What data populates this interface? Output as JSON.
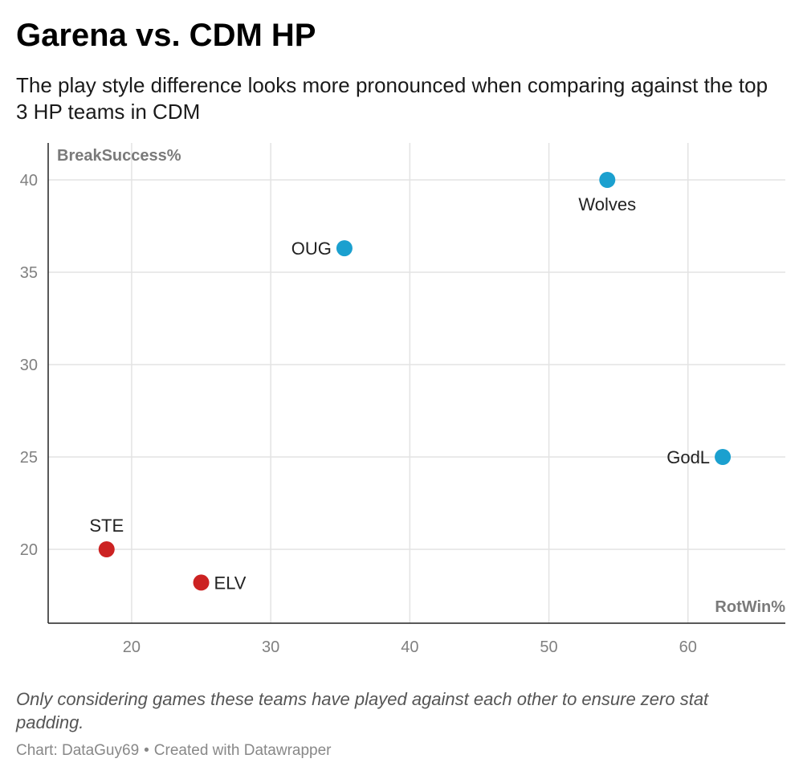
{
  "title": "Garena vs. CDM HP",
  "subtitle": "The play style difference looks more pronounced when comparing against the top 3 HP teams in CDM",
  "notes": "Only considering games these teams have played against each other to ensure zero stat padding.",
  "byline": {
    "chart_credit": "Chart: DataGuy69",
    "separator": "•",
    "tool_credit": "Created with Datawrapper"
  },
  "colors": {
    "cdm": "#1ba0cf",
    "garena": "#cc2222",
    "grid": "#e3e3e3",
    "axis": "#222222"
  },
  "chart_data": {
    "type": "scatter",
    "xlabel": "RotWin%",
    "ylabel": "BreakSuccess%",
    "xlim": [
      14,
      67
    ],
    "ylim": [
      16,
      42
    ],
    "xticks": [
      20,
      30,
      40,
      50,
      60
    ],
    "yticks": [
      20,
      25,
      30,
      35,
      40
    ],
    "grid": true,
    "points": [
      {
        "label": "Wolves",
        "x": 54.2,
        "y": 40.0,
        "color": "#1ba0cf",
        "label_position": "below"
      },
      {
        "label": "OUG",
        "x": 35.3,
        "y": 36.3,
        "color": "#1ba0cf",
        "label_position": "left"
      },
      {
        "label": "GodL",
        "x": 62.5,
        "y": 25.0,
        "color": "#1ba0cf",
        "label_position": "left"
      },
      {
        "label": "STE",
        "x": 18.2,
        "y": 20.0,
        "color": "#cc2222",
        "label_position": "above"
      },
      {
        "label": "ELV",
        "x": 25.0,
        "y": 18.2,
        "color": "#cc2222",
        "label_position": "right"
      }
    ]
  }
}
